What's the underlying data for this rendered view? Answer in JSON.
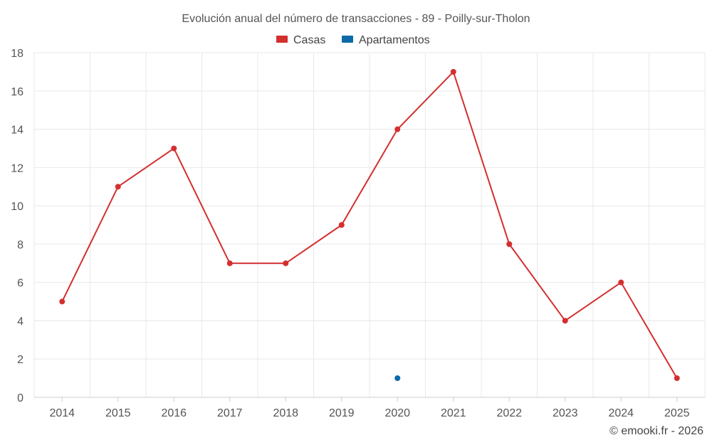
{
  "chart_data": {
    "type": "line",
    "title": "Evolución anual del número de transacciones - 89 - Poilly-sur-Tholon",
    "xlabel": "",
    "ylabel": "",
    "categories": [
      "2014",
      "2015",
      "2016",
      "2017",
      "2018",
      "2019",
      "2020",
      "2021",
      "2022",
      "2023",
      "2024",
      "2025"
    ],
    "ylim": [
      0,
      18
    ],
    "yticks": [
      0,
      2,
      4,
      6,
      8,
      10,
      12,
      14,
      16,
      18
    ],
    "grid": true,
    "legend_position": "top-center",
    "series": [
      {
        "name": "Casas",
        "color": "#d32f2f",
        "values": [
          5,
          11,
          13,
          7,
          7,
          9,
          14,
          17,
          8,
          4,
          6,
          1
        ]
      },
      {
        "name": "Apartamentos",
        "color": "#0d6aa8",
        "values": [
          null,
          null,
          null,
          null,
          null,
          null,
          1,
          null,
          null,
          null,
          null,
          null
        ]
      }
    ],
    "credit": "© emooki.fr - 2026"
  }
}
